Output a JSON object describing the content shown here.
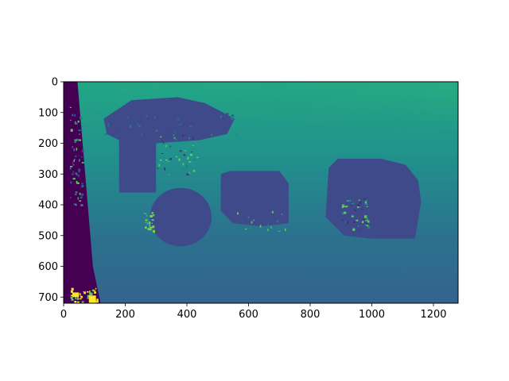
{
  "chart_data": {
    "type": "heatmap",
    "title": "",
    "xlabel": "",
    "ylabel": "",
    "image_width": 1280,
    "image_height": 720,
    "xlim": [
      0,
      1280
    ],
    "ylim": [
      720,
      0
    ],
    "xticks": [
      0,
      200,
      400,
      600,
      800,
      1000,
      1200
    ],
    "yticks": [
      0,
      100,
      200,
      300,
      400,
      500,
      600,
      700
    ],
    "colormap": "viridis",
    "grid": false,
    "colors": {
      "background_top_right": "#3fbc73",
      "background_top": "#27a883",
      "background_mid": "#2a788e",
      "background_bottom": "#34608d",
      "objects": "#3e4a89",
      "left_edge": "#440154",
      "highlight": "#fde725",
      "highlight_green": "#5ec962"
    },
    "regions": [
      {
        "name": "near-left-edge",
        "shape": "polygon",
        "points": [
          [
            0,
            0
          ],
          [
            45,
            0
          ],
          [
            70,
            300
          ],
          [
            95,
            600
          ],
          [
            120,
            720
          ],
          [
            0,
            720
          ]
        ],
        "value": "min"
      },
      {
        "name": "object-1-top",
        "shape": "polygon",
        "points": [
          [
            130,
            120
          ],
          [
            220,
            60
          ],
          [
            370,
            50
          ],
          [
            460,
            70
          ],
          [
            555,
            120
          ],
          [
            530,
            170
          ],
          [
            440,
            190
          ],
          [
            300,
            200
          ],
          [
            180,
            190
          ],
          [
            140,
            170
          ]
        ],
        "value": "near"
      },
      {
        "name": "object-1-body",
        "shape": "rect",
        "x": [
          180,
          300
        ],
        "y": [
          150,
          360
        ],
        "value": "near"
      },
      {
        "name": "object-1-base",
        "shape": "ellipse",
        "cx": 380,
        "cy": 440,
        "rx": 100,
        "ry": 95,
        "value": "near"
      },
      {
        "name": "object-2",
        "shape": "polygon",
        "points": [
          [
            510,
            300
          ],
          [
            540,
            290
          ],
          [
            700,
            290
          ],
          [
            730,
            330
          ],
          [
            730,
            460
          ],
          [
            640,
            470
          ],
          [
            550,
            460
          ],
          [
            510,
            420
          ]
        ],
        "value": "near"
      },
      {
        "name": "object-3",
        "shape": "polygon",
        "points": [
          [
            860,
            280
          ],
          [
            890,
            250
          ],
          [
            1030,
            250
          ],
          [
            1110,
            270
          ],
          [
            1150,
            320
          ],
          [
            1160,
            390
          ],
          [
            1140,
            510
          ],
          [
            1000,
            510
          ],
          [
            910,
            500
          ],
          [
            850,
            440
          ]
        ],
        "value": "near"
      }
    ]
  }
}
